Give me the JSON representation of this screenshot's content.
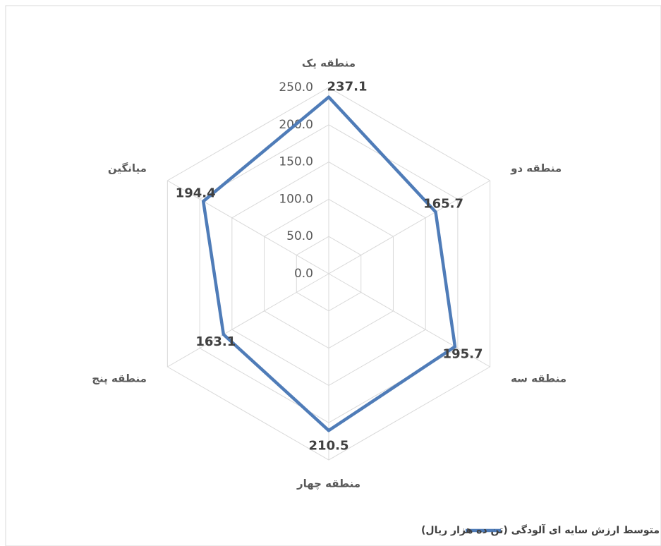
{
  "chart_data": {
    "type": "radar",
    "categories": [
      "منطقه یک",
      "منطقه دو",
      "منطقه سه",
      "منطقه چهار",
      "منطقه پنج",
      "میانگین"
    ],
    "series": [
      {
        "name": "متوسط ارزش  سایه ای آلودگی (تن ده هزار ریال)",
        "color": "#4f7cb8",
        "values": [
          237.1,
          165.7,
          195.7,
          210.5,
          163.1,
          194.4
        ]
      }
    ],
    "ylim": [
      0,
      250
    ],
    "yticks": [
      {
        "value": 0,
        "label": "0.0"
      },
      {
        "value": 50,
        "label": "50.0"
      },
      {
        "value": 100,
        "label": "100.0"
      },
      {
        "value": 150,
        "label": "150.0"
      },
      {
        "value": 200,
        "label": "200.0"
      },
      {
        "value": 250,
        "label": "250.0"
      }
    ],
    "grid": true
  }
}
